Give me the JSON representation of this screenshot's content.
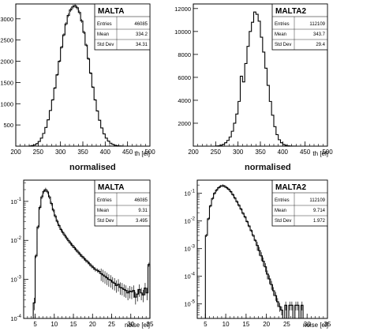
{
  "figure": {
    "panel_titles": [
      "normalised",
      "normalised"
    ]
  },
  "chart_data": [
    {
      "type": "bar",
      "histtype": "step",
      "name": "MALTA",
      "stats": {
        "Entries": "46085",
        "Mean": "334.2",
        "Std Dev": "34.31"
      },
      "xlabel": "th [el]",
      "ylabel": "",
      "xlim": [
        200,
        500
      ],
      "ylim": [
        0,
        3350
      ],
      "log_y": false,
      "xticks": [
        "200",
        "250",
        "300",
        "350",
        "400",
        "450",
        "500"
      ],
      "yticks": [
        "500",
        "1000",
        "1500",
        "2000",
        "2500",
        "3000"
      ],
      "error_bars": true,
      "bin_edges": [
        230,
        235,
        240,
        245,
        250,
        255,
        260,
        265,
        270,
        275,
        280,
        285,
        290,
        295,
        300,
        305,
        310,
        315,
        320,
        325,
        330,
        335,
        340,
        345,
        350,
        355,
        360,
        365,
        370,
        375,
        380,
        385,
        390,
        395,
        400,
        405,
        410,
        415,
        420,
        425,
        430,
        435,
        440
      ],
      "values": [
        5,
        15,
        30,
        60,
        110,
        190,
        300,
        440,
        620,
        840,
        1090,
        1370,
        1680,
        2000,
        2330,
        2620,
        2880,
        3080,
        3210,
        3280,
        3310,
        3260,
        3150,
        2950,
        2680,
        2380,
        2060,
        1720,
        1390,
        1090,
        830,
        610,
        430,
        290,
        190,
        120,
        70,
        40,
        22,
        12,
        6,
        3
      ]
    },
    {
      "type": "bar",
      "histtype": "step",
      "name": "MALTA2",
      "stats": {
        "Entries": "112109",
        "Mean": "343.7",
        "Std Dev": "29.4"
      },
      "xlabel": "th [el]",
      "ylabel": "",
      "xlim": [
        200,
        500
      ],
      "ylim": [
        0,
        12400
      ],
      "log_y": false,
      "xticks": [
        "200",
        "250",
        "300",
        "350",
        "400",
        "450",
        "500"
      ],
      "yticks": [
        "2000",
        "4000",
        "6000",
        "8000",
        "10000",
        "12000"
      ],
      "error_bars": false,
      "bin_edges": [
        250,
        255,
        260,
        265,
        270,
        275,
        280,
        285,
        290,
        295,
        300,
        305,
        310,
        315,
        320,
        325,
        330,
        335,
        340,
        345,
        350,
        355,
        360,
        365,
        370,
        375,
        380,
        385,
        390,
        395,
        400,
        405,
        410,
        415,
        420,
        425,
        430
      ],
      "values": [
        10,
        30,
        80,
        160,
        300,
        500,
        800,
        1300,
        2000,
        2800,
        3900,
        6100,
        5600,
        7200,
        8700,
        10000,
        10800,
        11700,
        11500,
        10900,
        9500,
        8200,
        6800,
        5300,
        3900,
        2700,
        1700,
        1000,
        560,
        300,
        150,
        70,
        30,
        12,
        5,
        2
      ]
    },
    {
      "type": "bar",
      "histtype": "step",
      "name": "MALTA",
      "stats": {
        "Entries": "46085",
        "Mean": "9.31",
        "Std Dev": "3.495"
      },
      "xlabel": "noise [el]",
      "ylabel": "",
      "xlim": [
        2,
        35
      ],
      "ylim": [
        0.0001,
        0.35
      ],
      "log_y": true,
      "xticks": [
        "5",
        "10",
        "15",
        "20",
        "25",
        "30",
        "35"
      ],
      "yticks": [
        "10^-4",
        "10^-3",
        "10^-2",
        "10^-1"
      ],
      "error_bars": true,
      "bin_edges": [
        4.5,
        5,
        5.5,
        6,
        6.5,
        7,
        7.5,
        8,
        8.5,
        9,
        9.5,
        10,
        10.5,
        11,
        11.5,
        12,
        12.5,
        13,
        13.5,
        14,
        14.5,
        15,
        15.5,
        16,
        16.5,
        17,
        17.5,
        18,
        18.5,
        19,
        19.5,
        20,
        20.5,
        21,
        21.5,
        22,
        22.5,
        23,
        23.5,
        24,
        24.5,
        25,
        25.5,
        26,
        26.5,
        27,
        27.5,
        28,
        28.5,
        29,
        29.5,
        30,
        30.5,
        31,
        31.5,
        32,
        32.5,
        33,
        33.5,
        34,
        34.5,
        35
      ],
      "values": [
        0.00025,
        0.004,
        0.022,
        0.07,
        0.13,
        0.18,
        0.2,
        0.175,
        0.13,
        0.088,
        0.06,
        0.042,
        0.031,
        0.024,
        0.019,
        0.016,
        0.0135,
        0.0115,
        0.0098,
        0.0085,
        0.0074,
        0.0065,
        0.0057,
        0.005,
        0.0044,
        0.0039,
        0.0035,
        0.0031,
        0.0028,
        0.0025,
        0.0022,
        0.002,
        0.0018,
        0.0017,
        0.0016,
        0.0014,
        0.0013,
        0.0012,
        0.0011,
        0.001,
        0.00095,
        0.00085,
        0.0008,
        0.0007,
        0.00075,
        0.00062,
        0.0006,
        0.00055,
        0.00052,
        0.00045,
        0.0005,
        0.00048,
        0.00052,
        0.00035,
        0.00042,
        0.00055,
        0.00045,
        0.0004,
        0.0006,
        0.00045,
        0.0024
      ]
    },
    {
      "type": "bar",
      "histtype": "step",
      "name": "MALTA2",
      "stats": {
        "Entries": "112109",
        "Mean": "9.714",
        "Std Dev": "1.972"
      },
      "xlabel": "noise [el]",
      "ylabel": "",
      "xlim": [
        3,
        35
      ],
      "ylim": [
        3e-06,
        0.3
      ],
      "log_y": true,
      "xticks": [
        "5",
        "10",
        "15",
        "20",
        "25",
        "30",
        "35"
      ],
      "yticks": [
        "10^-5",
        "10^-4",
        "10^-3",
        "10^-2",
        "10^-1"
      ],
      "error_bars": true,
      "bin_edges": [
        5,
        5.5,
        6,
        6.5,
        7,
        7.5,
        8,
        8.5,
        9,
        9.5,
        10,
        10.5,
        11,
        11.5,
        12,
        12.5,
        13,
        13.5,
        14,
        14.5,
        15,
        15.5,
        16,
        16.5,
        17,
        17.5,
        18,
        18.5,
        19,
        19.5,
        20,
        20.5,
        21,
        21.5,
        22,
        22.5,
        23,
        23.5,
        24,
        24.5,
        25,
        25.5,
        26,
        26.5,
        27,
        27.5,
        28,
        28.5,
        29
      ],
      "values": [
        0.003,
        0.012,
        0.035,
        0.065,
        0.1,
        0.13,
        0.16,
        0.18,
        0.19,
        0.18,
        0.16,
        0.14,
        0.115,
        0.09,
        0.068,
        0.05,
        0.037,
        0.027,
        0.019,
        0.014,
        0.0095,
        0.0066,
        0.0045,
        0.003,
        0.002,
        0.0013,
        0.00085,
        0.00055,
        0.00035,
        0.00022,
        0.00012,
        8e-05,
        5e-05,
        3e-05,
        2e-05,
        1.2e-05,
        8e-06,
        6e-06,
        0,
        9e-06,
        0,
        9e-06,
        9e-06,
        0,
        9e-06,
        9e-06,
        0,
        9e-06
      ]
    }
  ]
}
